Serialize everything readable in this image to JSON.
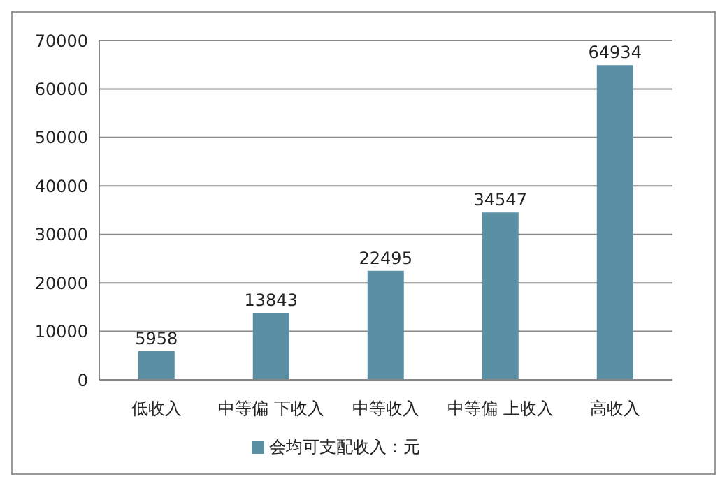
{
  "chart_data": {
    "type": "bar",
    "categories": [
      "低收入",
      "中等偏 下收入",
      "中等收入",
      "中等偏 上收入",
      "高收入"
    ],
    "series": [
      {
        "name": "会均可支配收入：元",
        "color": "#5b8fa3",
        "values": [
          5958,
          13843,
          22495,
          34547,
          64934
        ]
      }
    ],
    "ylim": [
      0,
      70000
    ],
    "yticks": [
      0,
      10000,
      20000,
      30000,
      40000,
      50000,
      60000,
      70000
    ],
    "grid": "y",
    "legend": "bottom",
    "data_labels": true
  }
}
